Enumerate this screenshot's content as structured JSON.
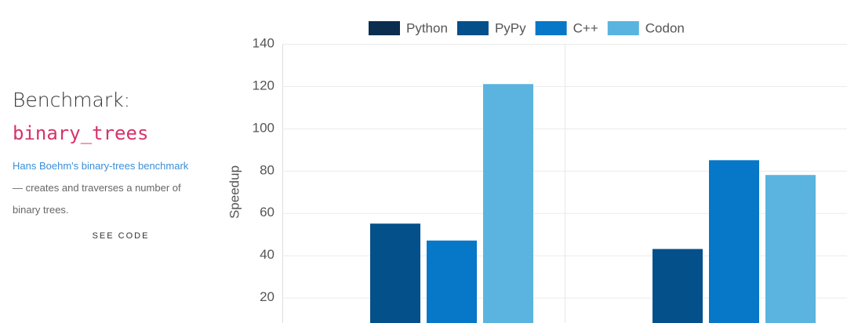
{
  "sidebar": {
    "heading": "Benchmark:",
    "benchmark_name": "binary_trees",
    "link_text": "Hans Boehm's binary-trees benchmark",
    "description_lines": [
      "— creates and traverses a number of",
      "binary trees."
    ],
    "button": "SEE CODE"
  },
  "chart_data": {
    "type": "bar",
    "y_label": "Speedup",
    "categories": [
      null,
      null
    ],
    "series": [
      {
        "name": "Python",
        "color": "#0b2d50",
        "values": [
          null,
          null
        ]
      },
      {
        "name": "PyPy",
        "color": "#03508a",
        "values": [
          55,
          43
        ]
      },
      {
        "name": "C++",
        "color": "#0777c8",
        "values": [
          47,
          85
        ]
      },
      {
        "name": "Codon",
        "color": "#5ab4df",
        "values": [
          121,
          78
        ]
      }
    ],
    "ylim": [
      8,
      140
    ],
    "yticks": [
      20,
      40,
      60,
      80,
      100,
      120,
      140
    ],
    "grid": true,
    "legend": "top"
  }
}
